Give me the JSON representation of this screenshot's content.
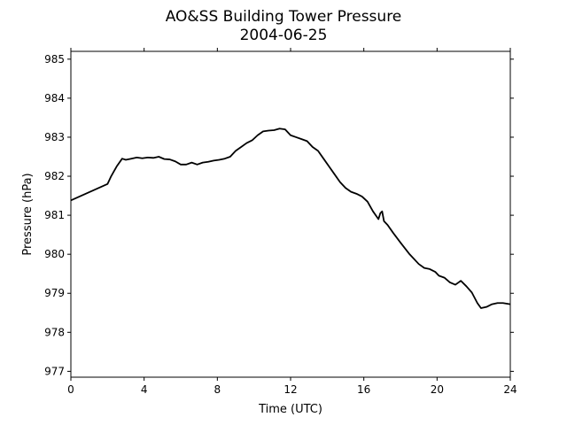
{
  "chart_data": {
    "type": "line",
    "title": "AO&SS Building Tower Pressure",
    "subtitle": "2004-06-25",
    "xlabel": "Time (UTC)",
    "ylabel": "Pressure (hPa)",
    "xlim": [
      0,
      24
    ],
    "ylim": [
      976.85,
      985.2
    ],
    "xticks": [
      0,
      4,
      8,
      12,
      16,
      20,
      24
    ],
    "yticks": [
      977,
      978,
      979,
      980,
      981,
      982,
      983,
      984,
      985
    ],
    "grid": false,
    "legend": "none",
    "line_color": "#000000",
    "series": [
      {
        "x": [
          0,
          2.0,
          2.2,
          2.5,
          2.8,
          3.0,
          3.3,
          3.6,
          3.9,
          4.2,
          4.5,
          4.8,
          5.1,
          5.4,
          5.7,
          6.0,
          6.3,
          6.6,
          6.9,
          7.2,
          7.5,
          7.8,
          8.1,
          8.4,
          8.7,
          9.0,
          9.3,
          9.6,
          9.9,
          10.2,
          10.5,
          10.8,
          11.1,
          11.4,
          11.7,
          12.0,
          12.3,
          12.6,
          12.9,
          13.2,
          13.5,
          13.8,
          14.1,
          14.4,
          14.7,
          15.0,
          15.3,
          15.6,
          15.9,
          16.2,
          16.5,
          16.8,
          16.9,
          17.0,
          17.1,
          17.3,
          17.6,
          18.0,
          18.5,
          19.0,
          19.3,
          19.6,
          19.9,
          20.1,
          20.4,
          20.7,
          21.0,
          21.3,
          21.6,
          21.9,
          22.2,
          22.4,
          22.7,
          23.0,
          23.3,
          23.6,
          24.0
        ],
        "y": [
          981.38,
          981.8,
          982.0,
          982.25,
          982.45,
          982.42,
          982.45,
          982.48,
          982.46,
          982.48,
          982.47,
          982.5,
          982.44,
          982.43,
          982.38,
          982.3,
          982.3,
          982.35,
          982.3,
          982.35,
          982.37,
          982.4,
          982.42,
          982.45,
          982.5,
          982.65,
          982.75,
          982.85,
          982.92,
          983.05,
          983.15,
          983.17,
          983.18,
          983.22,
          983.2,
          983.05,
          983.0,
          982.95,
          982.9,
          982.75,
          982.65,
          982.45,
          982.25,
          982.05,
          981.85,
          981.7,
          981.6,
          981.55,
          981.48,
          981.35,
          981.1,
          980.9,
          981.05,
          981.1,
          980.85,
          980.75,
          980.55,
          980.3,
          980.0,
          979.75,
          979.65,
          979.62,
          979.55,
          979.45,
          979.4,
          979.28,
          979.22,
          979.32,
          979.18,
          979.02,
          978.75,
          978.62,
          978.65,
          978.72,
          978.75,
          978.75,
          978.72
        ]
      }
    ]
  }
}
